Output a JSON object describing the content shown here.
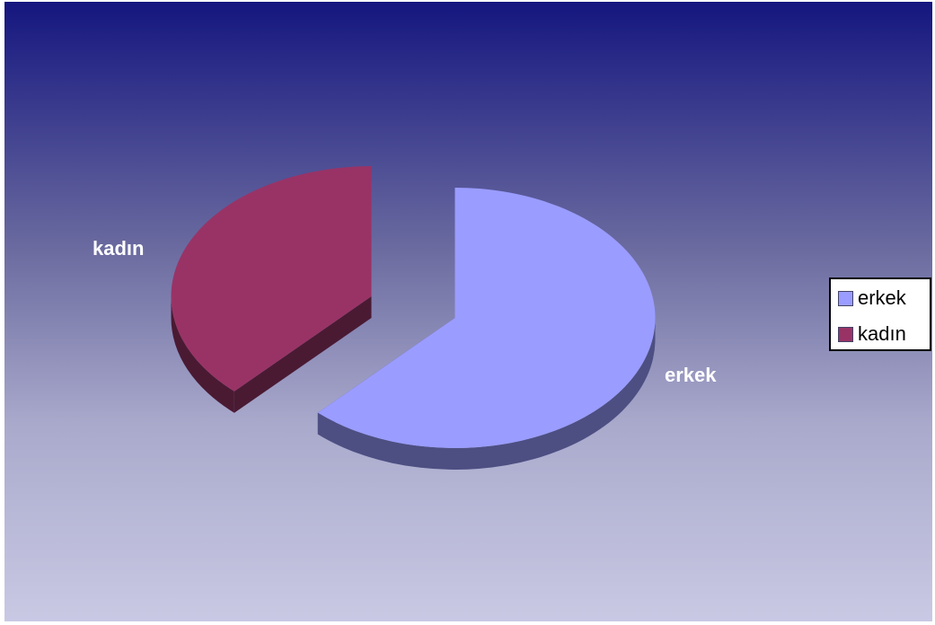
{
  "chart_data": {
    "type": "pie",
    "subtype": "3d-exploded",
    "categories": [
      "erkek",
      "kadın"
    ],
    "values": [
      62,
      38
    ],
    "colors": [
      "#9a9cff",
      "#993366"
    ],
    "side_colors": [
      "#4d4f82",
      "#4a1a33"
    ],
    "title": "",
    "data_labels": [
      "erkek",
      "kadın"
    ],
    "legend": {
      "position": "right",
      "entries": [
        "erkek",
        "kadın"
      ]
    }
  }
}
